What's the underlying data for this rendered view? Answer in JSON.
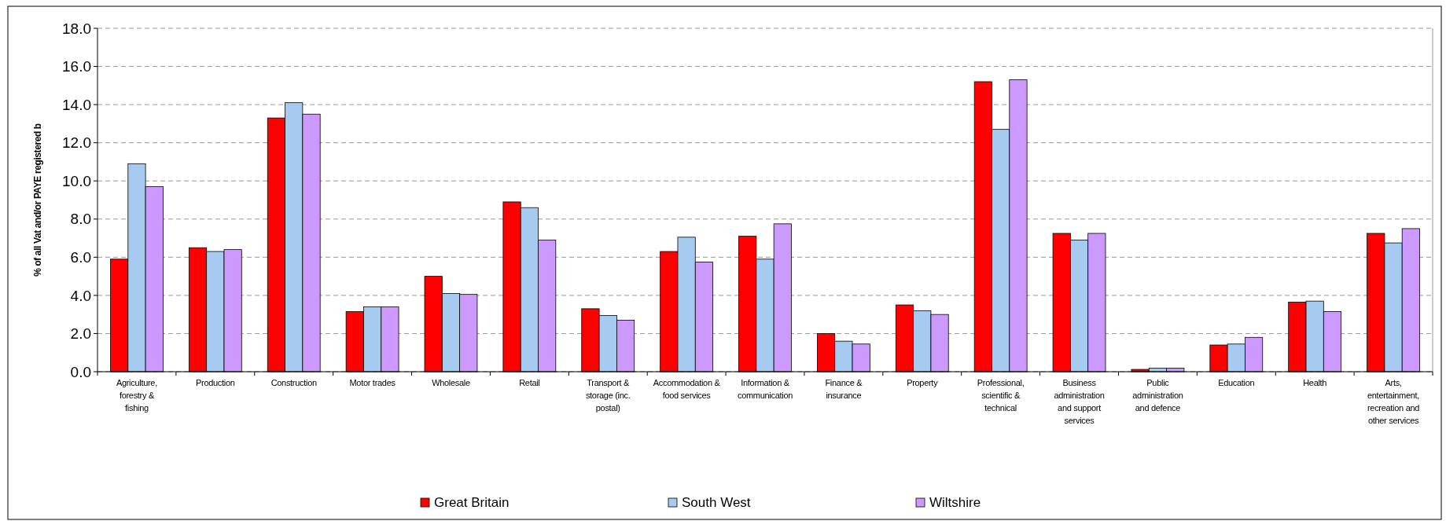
{
  "chart_data": {
    "type": "bar",
    "ylabel": "% of all Vat and/or PAYE registered b",
    "categories": [
      "Agriculture, forestry & fishing",
      "Production",
      "Construction",
      "Motor trades",
      "Wholesale",
      "Retail",
      "Transport & storage (inc. postal)",
      "Accommodation & food services",
      "Information & communication",
      "Finance & insurance",
      "Property",
      "Professional, scientific & technical",
      "Business administration and support services",
      "Public administration and defence",
      "Education",
      "Health",
      "Arts, entertainment, recreation and other services"
    ],
    "series": [
      {
        "name": "Great Britain",
        "color": "#ff0000",
        "values": [
          5.9,
          6.5,
          13.3,
          3.15,
          5.0,
          8.9,
          3.3,
          6.3,
          7.1,
          2.0,
          3.5,
          15.2,
          7.25,
          0.12,
          1.4,
          3.65,
          7.25
        ]
      },
      {
        "name": "South West",
        "color": "#a6caf0",
        "values": [
          10.9,
          6.3,
          14.1,
          3.4,
          4.1,
          8.6,
          2.95,
          7.05,
          5.9,
          1.6,
          3.2,
          12.7,
          6.9,
          0.19,
          1.45,
          3.7,
          6.75
        ]
      },
      {
        "name": "Wiltshire",
        "color": "#cc99ff",
        "values": [
          9.7,
          6.4,
          13.5,
          3.4,
          4.05,
          6.9,
          2.7,
          5.75,
          7.75,
          1.45,
          3.0,
          15.3,
          7.25,
          0.19,
          1.8,
          3.15,
          7.5
        ]
      }
    ],
    "ylim": [
      0,
      18
    ],
    "yticks": [
      {
        "value": 0,
        "label": "0.0"
      },
      {
        "value": 2,
        "label": "2.0"
      },
      {
        "value": 4,
        "label": "4.0"
      },
      {
        "value": 6,
        "label": "6.0"
      },
      {
        "value": 8,
        "label": "8.0"
      },
      {
        "value": 10,
        "label": "10.0"
      },
      {
        "value": 12,
        "label": "12.0"
      },
      {
        "value": 14,
        "label": "14.0"
      },
      {
        "value": 16,
        "label": "16.0"
      },
      {
        "value": 18,
        "label": "18.0"
      }
    ],
    "grid": "y",
    "legend": "bottom"
  }
}
